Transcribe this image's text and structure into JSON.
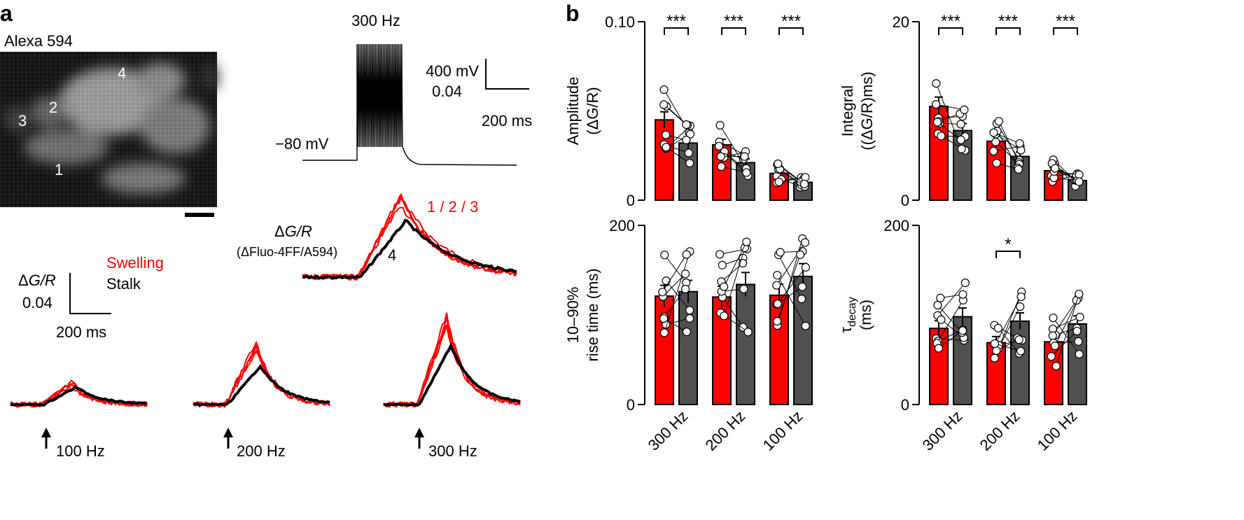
{
  "panel_a": {
    "label": "a",
    "image_title": "Alexa 594",
    "roi_labels": [
      "1",
      "2",
      "3",
      "4"
    ],
    "ap_train": {
      "freq_label": "300 Hz",
      "baseline_label": "−80 mV",
      "scale_v": "400 mV",
      "scale_dgr": "0.04",
      "scale_t": "200 ms"
    },
    "main_trace": {
      "ylabel": "ΔG/R",
      "ylabel_italic": "G/R",
      "ylabel_prefix": "Δ",
      "sublabel": "(ΔFluo-4FF/A594)",
      "red_label": "1 / 2 / 3",
      "black_label": "4"
    },
    "legend": {
      "swelling": "Swelling",
      "stalk": "Stalk"
    },
    "scale_bar": {
      "ylabel_prefix": "Δ",
      "ylabel_italic": "G/R",
      "value": "0.04",
      "time": "200 ms"
    },
    "small_traces": [
      {
        "freq": "100 Hz"
      },
      {
        "freq": "200 Hz"
      },
      {
        "freq": "300 Hz"
      }
    ]
  },
  "panel_b": {
    "label": "b",
    "categories": [
      "300 Hz",
      "200 Hz",
      "100 Hz"
    ],
    "colors": {
      "swelling": "#ff0000",
      "stalk": "#505050"
    }
  },
  "chart_data": [
    {
      "type": "bar",
      "title": "",
      "ylabel": "Amplitude (ΔG/R)",
      "ylabel_lines": [
        "Amplitude",
        "(ΔG/R)"
      ],
      "ylim": [
        0,
        0.1
      ],
      "yticks": [
        "0",
        "0.10"
      ],
      "categories": [
        "300 Hz",
        "200 Hz",
        "100 Hz"
      ],
      "significance": [
        "***",
        "***",
        "***"
      ],
      "series": [
        {
          "values": [
            0.045,
            0.031,
            0.015
          ]
        },
        {
          "values": [
            0.032,
            0.021,
            0.01
          ]
        }
      ]
    },
    {
      "type": "bar",
      "title": "",
      "ylabel": "Integral ((ΔG/R)ms)",
      "ylabel_lines": [
        "Integral",
        "((ΔG/R)ms)"
      ],
      "ylim": [
        0,
        20
      ],
      "yticks": [
        "0",
        "20"
      ],
      "categories": [
        "300 Hz",
        "200 Hz",
        "100 Hz"
      ],
      "significance": [
        "***",
        "***",
        "***"
      ],
      "series": [
        {
          "values": [
            10.5,
            6.6,
            3.3
          ]
        },
        {
          "values": [
            7.8,
            4.9,
            2.2
          ]
        }
      ]
    },
    {
      "type": "bar",
      "title": "",
      "ylabel": "10–90% rise time (ms)",
      "ylabel_lines": [
        "10–90%",
        "rise time (ms)"
      ],
      "ylim": [
        0,
        200
      ],
      "yticks": [
        "0",
        "200"
      ],
      "categories": [
        "300 Hz",
        "200 Hz",
        "100 Hz"
      ],
      "significance": [
        "",
        "",
        ""
      ],
      "series": [
        {
          "values": [
            121,
            120,
            122
          ]
        },
        {
          "values": [
            126,
            134,
            143
          ]
        }
      ]
    },
    {
      "type": "bar",
      "title": "",
      "ylabel": "τdecay (ms)",
      "ylabel_lines": [
        "τ",
        "(ms)"
      ],
      "ylabel_sub": "decay",
      "ylim": [
        0,
        200
      ],
      "yticks": [
        "0",
        "200"
      ],
      "categories": [
        "300 Hz",
        "200 Hz",
        "100 Hz"
      ],
      "significance": [
        "",
        "*",
        ""
      ],
      "series": [
        {
          "values": [
            85,
            69,
            70
          ]
        },
        {
          "values": [
            98,
            93,
            90
          ]
        }
      ]
    }
  ]
}
